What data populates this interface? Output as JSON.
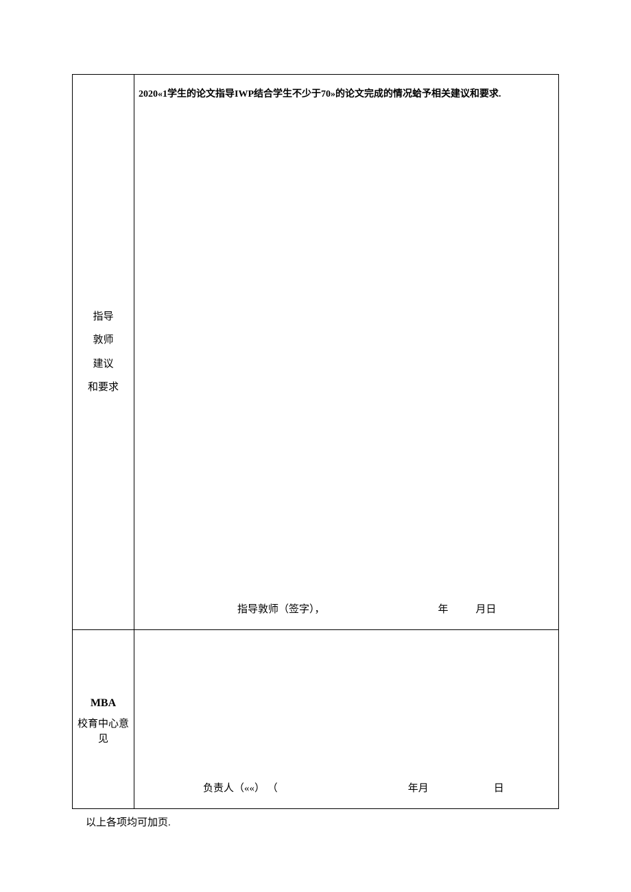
{
  "table": {
    "row1": {
      "label_line1": "指导",
      "label_line2": "敦师",
      "label_line3": "建议",
      "label_line4": "和要求",
      "instruction": "2020«1学生的论文指导IWP结合学生不少于70»的论文完成的情况蛤予相关建议和要求.",
      "signature_label": "指导敦师（签字），",
      "year_label": "年",
      "monthday_label": "月日"
    },
    "row2": {
      "label_mba": "MBA",
      "label_center": "校育中心意见",
      "signature_label": "负责人（««） （",
      "yearmonth_label": "年月",
      "day_label": "日"
    }
  },
  "footer": {
    "note": "以上各项均可加页."
  },
  "colors": {
    "border": "#000000",
    "background": "#ffffff",
    "text": "#000000"
  }
}
